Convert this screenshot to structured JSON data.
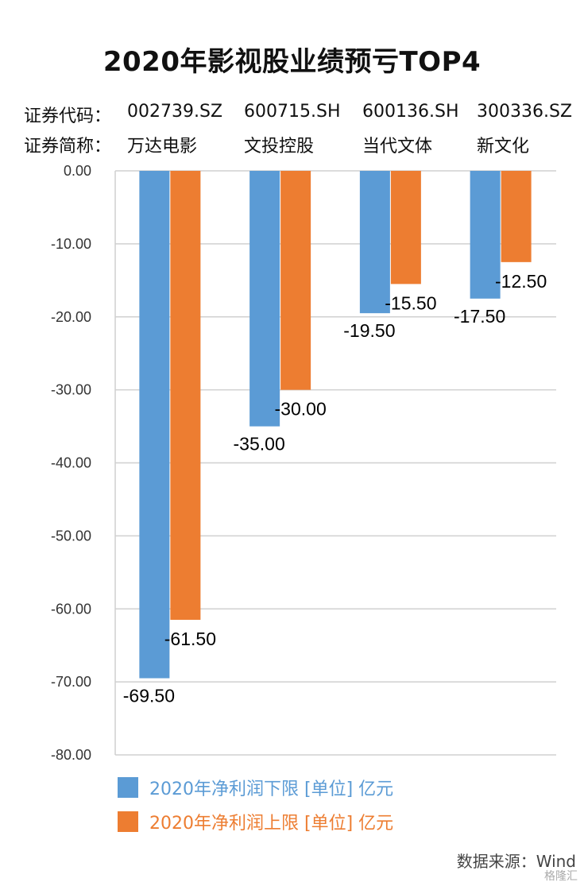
{
  "title": "2020年影视股业绩预亏TOP4",
  "info": {
    "code_label": "证券代码：",
    "name_label": "证券简称：",
    "codes": [
      "002739.SZ",
      "600715.SH",
      "600136.SH",
      "300336.SZ"
    ],
    "names": [
      "万达电影",
      "文投控股",
      "当代文体",
      "新文化"
    ]
  },
  "legend": {
    "lower": "2020年净利润下限 [单位] 亿元",
    "upper": "2020年净利润上限 [单位] 亿元"
  },
  "source": "数据来源：Wind",
  "watermark": "格隆汇",
  "colors": {
    "lower": "#5b9bd5",
    "upper": "#ed7d31"
  },
  "chart_data": {
    "type": "bar",
    "categories": [
      "万达电影",
      "文投控股",
      "当代文体",
      "新文化"
    ],
    "series": [
      {
        "name": "2020年净利润下限 [单位] 亿元",
        "values": [
          -69.5,
          -35.0,
          -19.5,
          -17.5
        ]
      },
      {
        "name": "2020年净利润上限 [单位] 亿元",
        "values": [
          -61.5,
          -30.0,
          -15.5,
          -12.5
        ]
      }
    ],
    "data_labels": [
      [
        "-69.50",
        "-35.00",
        "-19.50",
        "-17.50"
      ],
      [
        "-61.50",
        "-30.00",
        "-15.50",
        "-12.50"
      ]
    ],
    "yticks": [
      0,
      -10,
      -20,
      -30,
      -40,
      -50,
      -60,
      -70,
      -80
    ],
    "ytick_labels": [
      "0.00",
      "-10.00",
      "-20.00",
      "-30.00",
      "-40.00",
      "-50.00",
      "-60.00",
      "-70.00",
      "-80.00"
    ],
    "ylim": [
      -80,
      0
    ],
    "grid": true,
    "legend_position": "bottom-left"
  }
}
